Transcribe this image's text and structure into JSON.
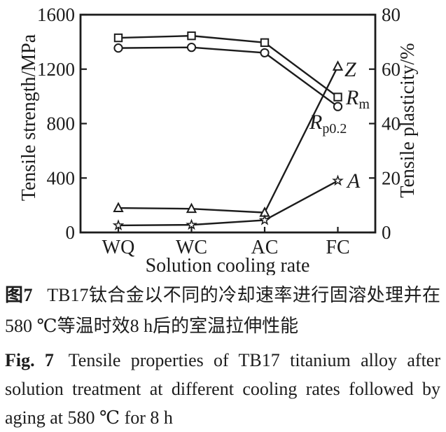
{
  "colors": {
    "ink": "#1c1c1c",
    "background": "#ffffff"
  },
  "chart_data": {
    "type": "line",
    "categories": [
      "WQ",
      "WC",
      "AC",
      "FC"
    ],
    "xlabel": "Solution cooling rate",
    "ylabel_left": "Tensile strength/MPa",
    "ylabel_right": "Tensile plasticity/%",
    "ylim_left": [
      0,
      1600
    ],
    "ylim_right": [
      0,
      80
    ],
    "yticks_left": [
      0,
      400,
      800,
      1200,
      1600
    ],
    "yticks_right": [
      0,
      20,
      40,
      60,
      80
    ],
    "grid": false,
    "legend": "inline-labels-at-last-point",
    "series": [
      {
        "name": "Rm",
        "axis": "left",
        "marker": "square",
        "label": "R",
        "label_sub": "m",
        "values": [
          1430,
          1445,
          1395,
          995
        ]
      },
      {
        "name": "Rp0.2",
        "axis": "left",
        "marker": "circle",
        "label": "R",
        "label_sub": "p0.2",
        "values": [
          1355,
          1360,
          1320,
          925
        ]
      },
      {
        "name": "Z",
        "axis": "right",
        "marker": "triangle",
        "label": "Z",
        "label_sub": "",
        "values": [
          9,
          8.7,
          7.3,
          61
        ]
      },
      {
        "name": "A",
        "axis": "right",
        "marker": "star",
        "label": "A",
        "label_sub": "",
        "values": [
          2.6,
          2.8,
          4.5,
          19
        ]
      }
    ]
  },
  "caption": {
    "zh": {
      "fig_label": "图7",
      "text": "TB17钛合金以不同的冷却速率进行固溶处理并在580 ℃等温时效8 h后的室温拉伸性能"
    },
    "en": {
      "fig_label": "Fig. 7",
      "text": "Tensile properties of TB17 titanium alloy after solution treatment at different cooling rates followed by aging at 580 ℃ for 8 h"
    }
  }
}
